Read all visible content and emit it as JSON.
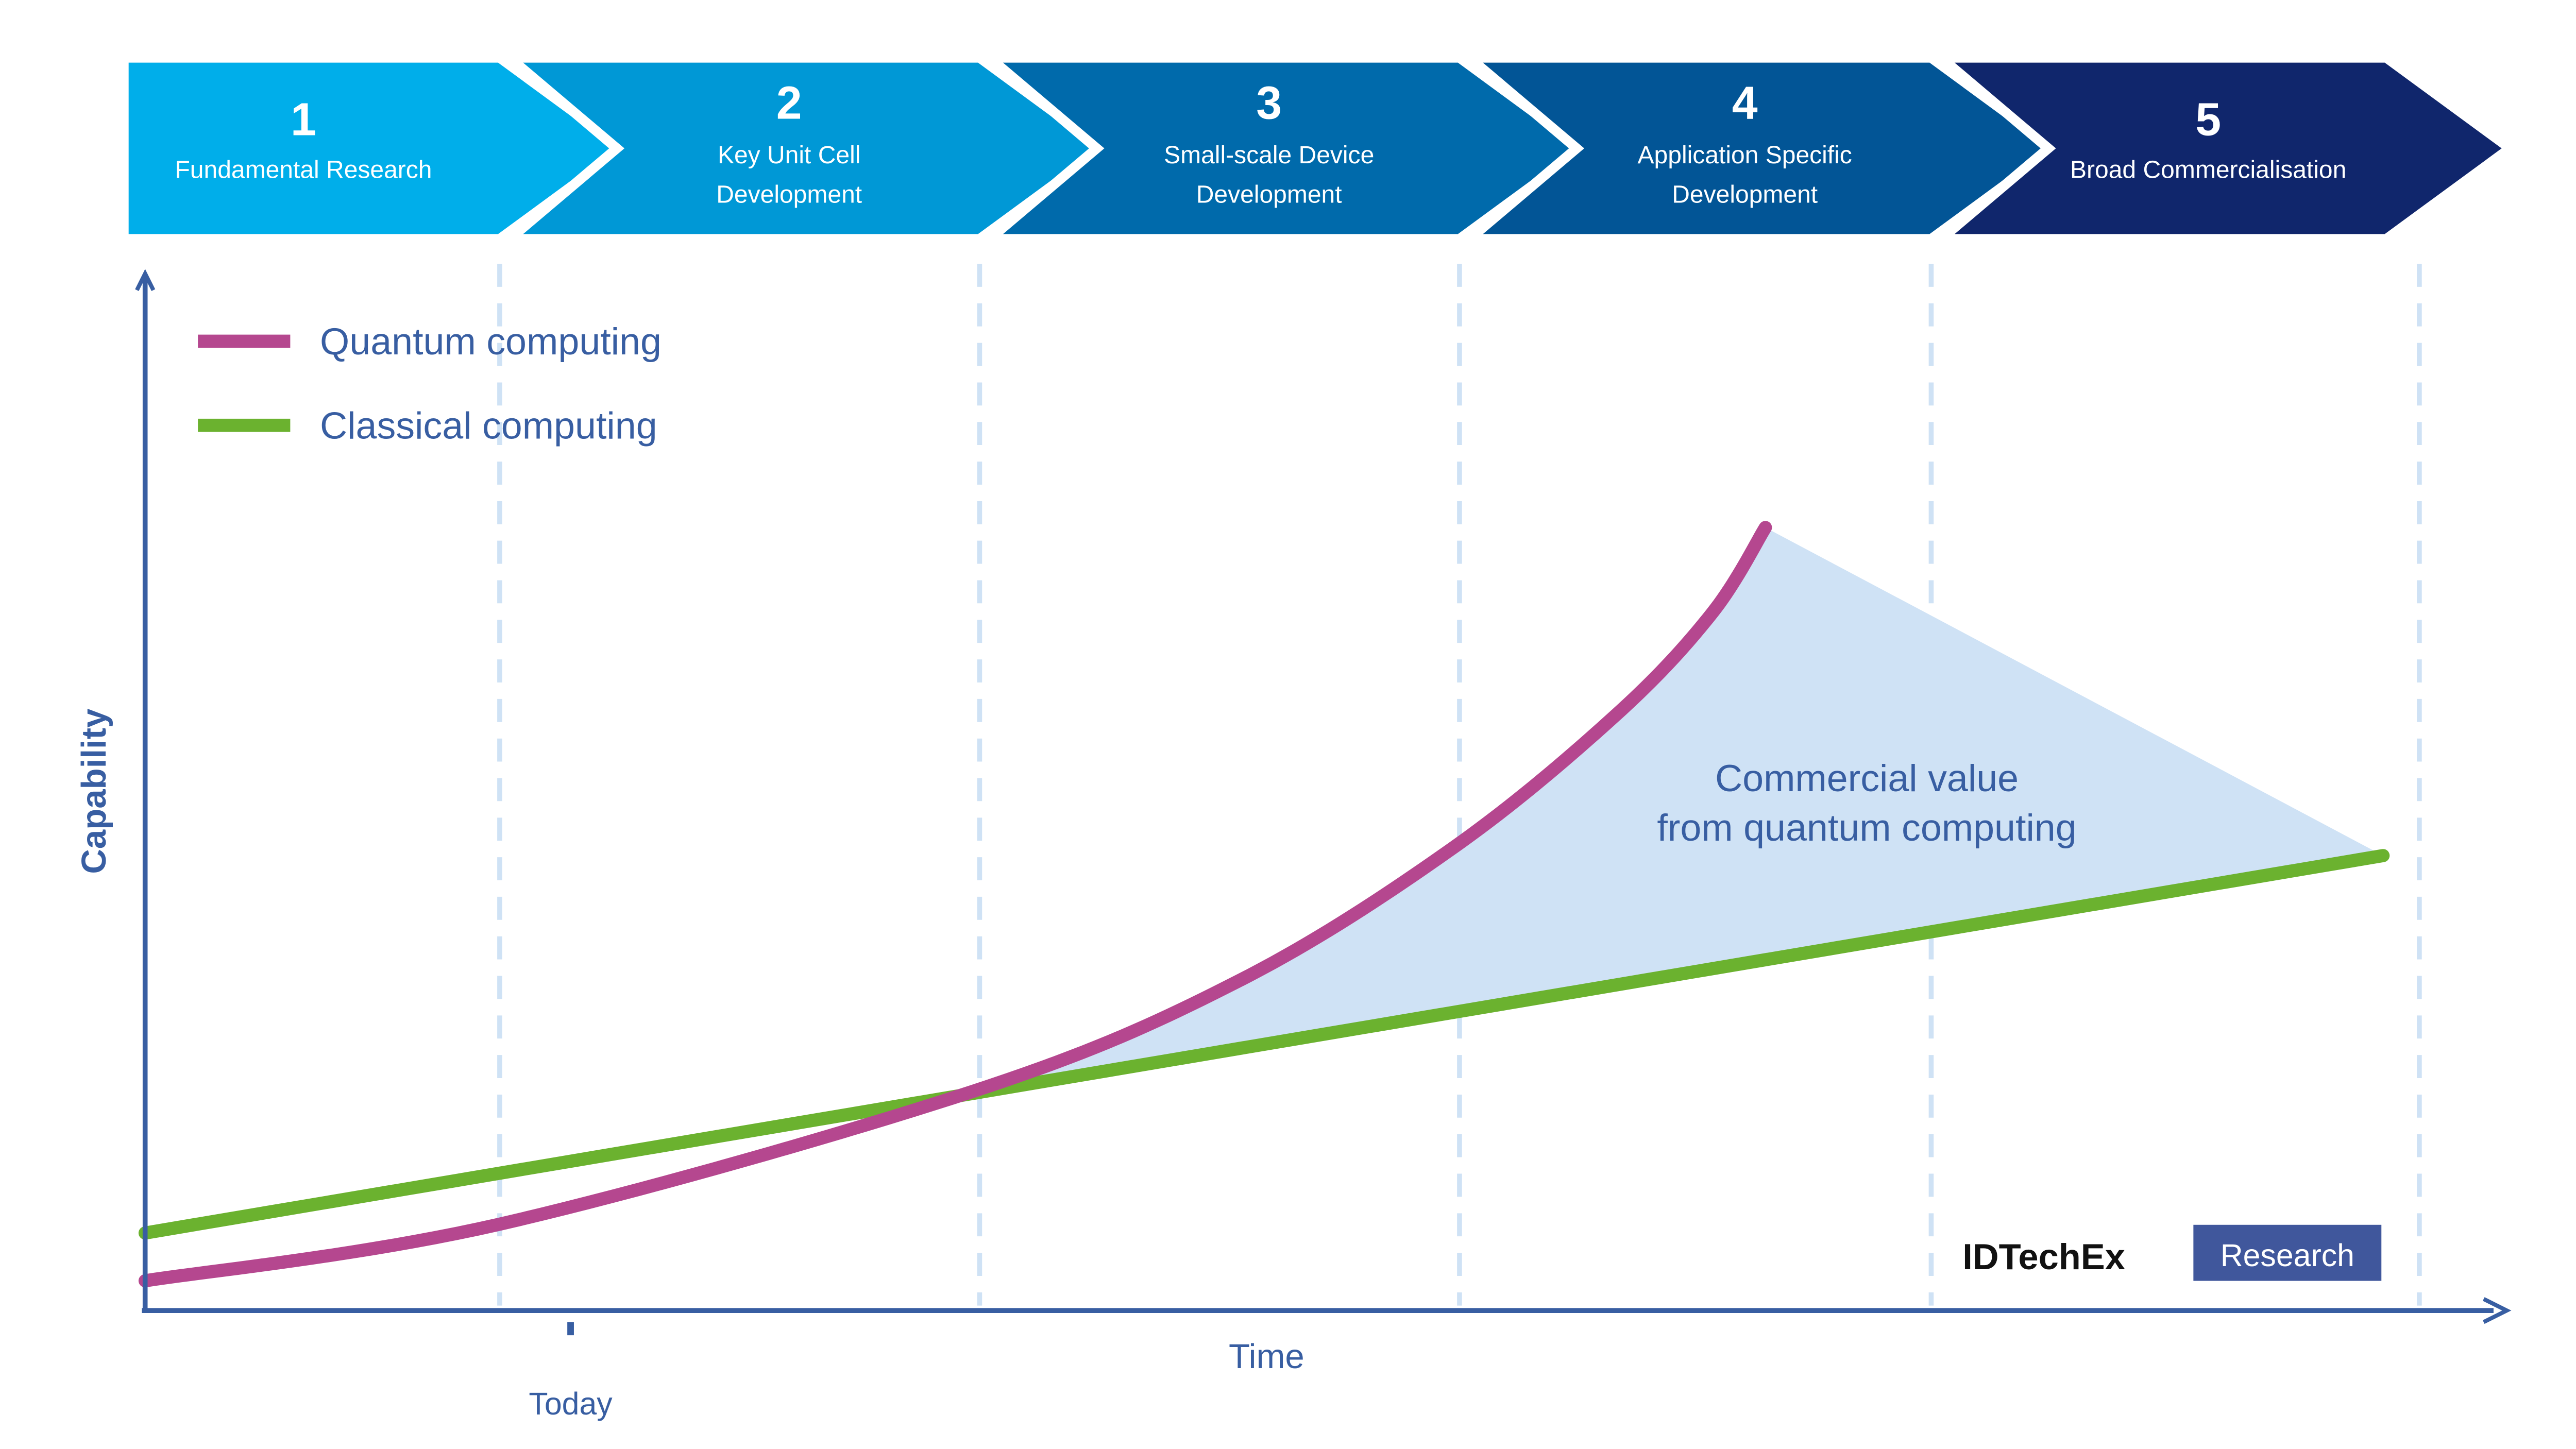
{
  "stages": [
    {
      "number": "1",
      "label_lines": [
        "Fundamental Research"
      ],
      "color": "#00aeea"
    },
    {
      "number": "2",
      "label_lines": [
        "Key Unit Cell",
        "Development"
      ],
      "color": "#0098d6"
    },
    {
      "number": "3",
      "label_lines": [
        "Small-scale Device",
        "Development"
      ],
      "color": "#006aab"
    },
    {
      "number": "4",
      "label_lines": [
        "Application Specific",
        "Development"
      ],
      "color": "#025596"
    },
    {
      "number": "5",
      "label_lines": [
        "Broad Commercialisation"
      ],
      "color": "#10266c"
    }
  ],
  "watermark": {
    "brand": "IDTechEx",
    "tag": "Research"
  },
  "chart_data": {
    "type": "line",
    "title": "",
    "xlabel": "Time",
    "ylabel": "Capability",
    "x_marker": {
      "label": "Today"
    },
    "xlim": [
      0,
      10.5
    ],
    "ylim": [
      0,
      105
    ],
    "grid": "vertical dashed stage boundaries",
    "legend_position": "top-left",
    "series": [
      {
        "name": "Quantum computing",
        "color": "#b5478f",
        "points": [
          [
            0,
            3.8
          ],
          [
            1.58,
            11
          ],
          [
            3.7,
            28
          ],
          [
            4.88,
            42
          ],
          [
            5.84,
            59
          ],
          [
            6.57,
            76
          ],
          [
            7.0,
            89
          ],
          [
            7.24,
            100
          ]
        ]
      },
      {
        "name": "Classical computing",
        "color": "#6bb22f",
        "points": [
          [
            0,
            9.9
          ],
          [
            10,
            58.1
          ]
        ]
      }
    ],
    "annotations": [
      {
        "text_lines": [
          "Commercial value",
          "from quantum computing"
        ],
        "fill_color": "#cfe2f5"
      }
    ]
  }
}
